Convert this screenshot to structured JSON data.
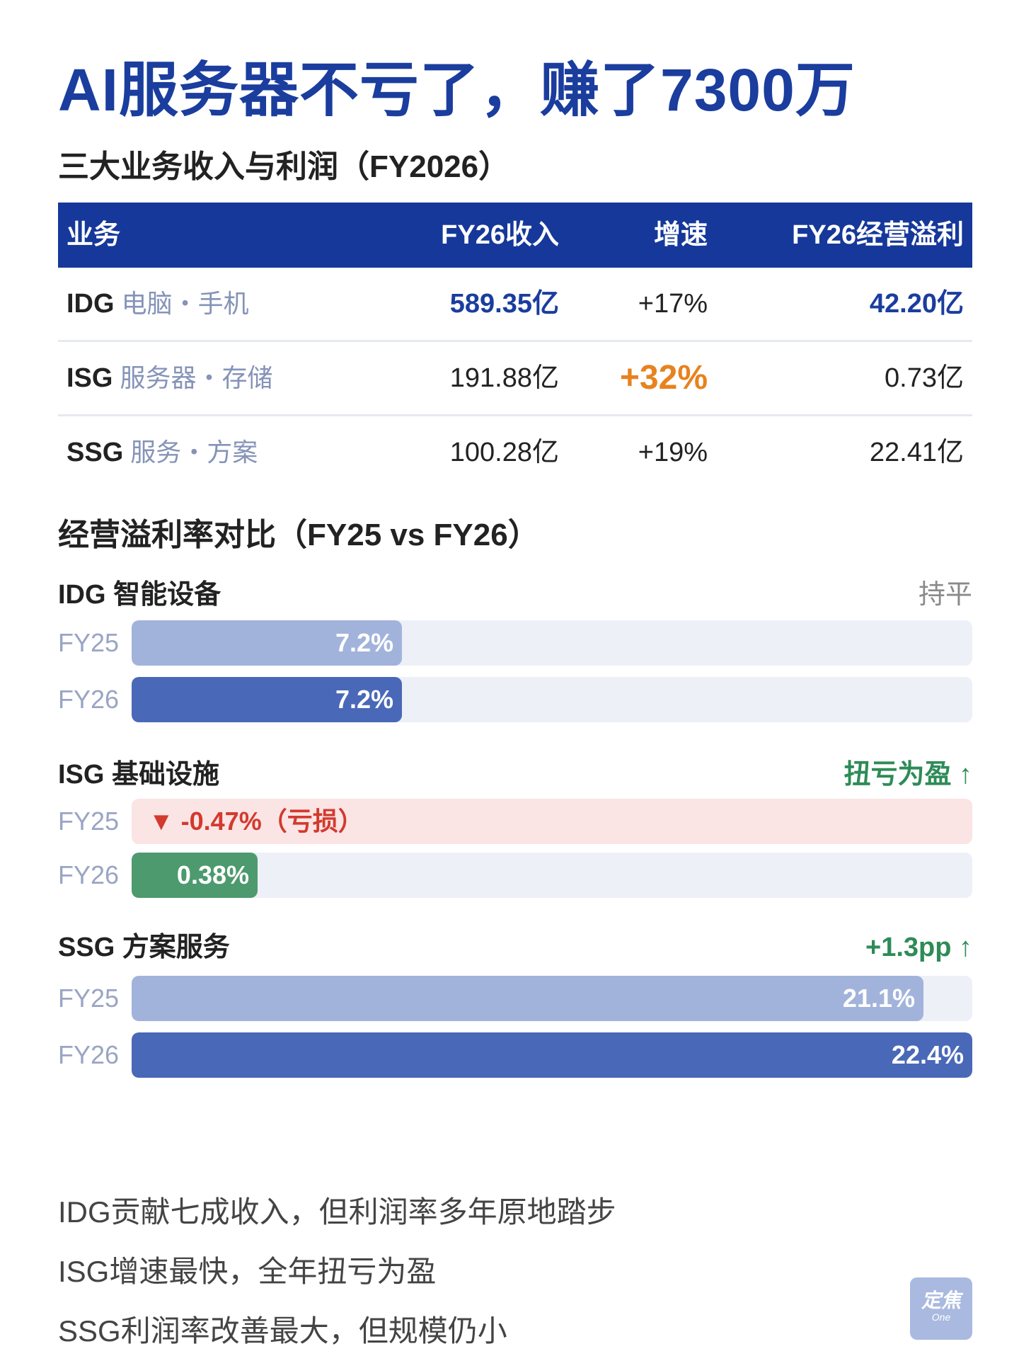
{
  "title": "AI服务器不亏了，赚了7300万",
  "section1_title": "三大业务收入与利润（FY2026）",
  "table": {
    "headers": [
      "业务",
      "FY26收入",
      "增速",
      "FY26经营溢利"
    ],
    "rows": [
      {
        "code": "IDG",
        "desc": "电脑・手机",
        "revenue": "589.35亿",
        "growth": "+17%",
        "profit": "42.20亿"
      },
      {
        "code": "ISG",
        "desc": "服务器・存储",
        "revenue": "191.88亿",
        "growth": "+32%",
        "profit": "0.73亿"
      },
      {
        "code": "SSG",
        "desc": "服务・方案",
        "revenue": "100.28亿",
        "growth": "+19%",
        "profit": "22.41亿"
      }
    ]
  },
  "section2_title": "经营溢利率对比（FY25 vs FY26）",
  "chart_data": {
    "type": "bar",
    "orientation": "horizontal",
    "title": "经营溢利率对比（FY25 vs FY26）",
    "unit": "%",
    "xlim": [
      0,
      22.4
    ],
    "groups": [
      {
        "name": "IDG 智能设备",
        "tag": "持平",
        "bars": [
          {
            "label": "FY25",
            "value": 7.2,
            "display": "7.2%"
          },
          {
            "label": "FY26",
            "value": 7.2,
            "display": "7.2%"
          }
        ]
      },
      {
        "name": "ISG 基础设施",
        "tag": "扭亏为盈 ↑",
        "bars": [
          {
            "label": "FY25",
            "value": -0.47,
            "display": "▼ -0.47%（亏损）"
          },
          {
            "label": "FY26",
            "value": 0.38,
            "display": "0.38%"
          }
        ]
      },
      {
        "name": "SSG 方案服务",
        "tag": "+1.3pp ↑",
        "bars": [
          {
            "label": "FY25",
            "value": 21.1,
            "display": "21.1%"
          },
          {
            "label": "FY26",
            "value": 22.4,
            "display": "22.4%"
          }
        ]
      }
    ]
  },
  "colors": {
    "primary": "#1a3d9e",
    "header_bg": "#16389a",
    "bar_fy25": "#a2b3db",
    "bar_fy26": "#4a68b8",
    "bar_positive_turn": "#4c9a6e",
    "negative": "#d23a2e",
    "negative_bg": "#fbe4e4",
    "highlight": "#e8821e",
    "green_tag": "#2e8b57"
  },
  "notes": [
    "IDG贡献七成收入，但利润率多年原地踏步",
    "ISG增速最快，全年扭亏为盈",
    "SSG利润率改善最大，但规模仍小"
  ],
  "logo": {
    "main": "定焦",
    "sub": "One"
  }
}
